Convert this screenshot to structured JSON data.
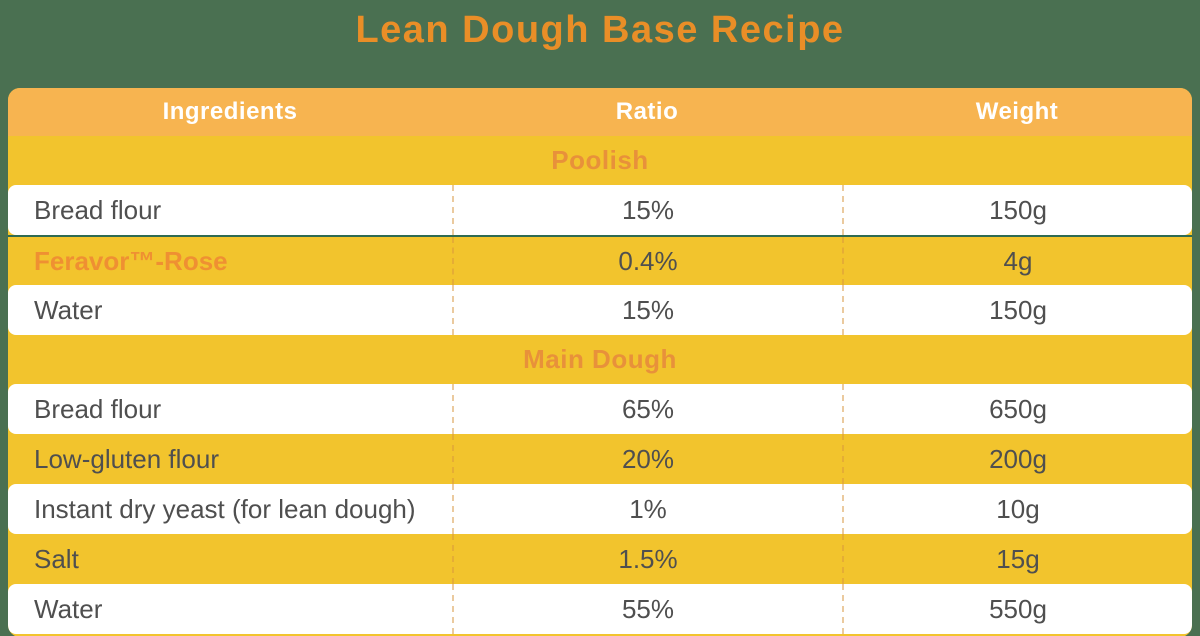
{
  "title": "Lean Dough Base Recipe",
  "colors": {
    "page_bg": "#4A7051",
    "table_bg": "#F2C42D",
    "header_bg": "#F7B450",
    "header_text": "#FFFFFF",
    "title_text": "#E98E27",
    "section_text": "#E8913A",
    "highlight_text": "#EF9032",
    "divider_green": "#2F6B52",
    "body_text": "#4F4F4F"
  },
  "table": {
    "columns": [
      {
        "key": "ingredient",
        "label": "Ingredients"
      },
      {
        "key": "ratio",
        "label": "Ratio"
      },
      {
        "key": "weight",
        "label": "Weight"
      }
    ],
    "sections": [
      {
        "label": "Poolish",
        "rows": [
          {
            "ingredient": "Bread flour",
            "ratio": "15%",
            "weight": "150g",
            "variant": "white",
            "highlight": false
          },
          {
            "ingredient": "Feravor™-Rose",
            "ratio": "0.4%",
            "weight": "4g",
            "variant": "yellow",
            "highlight": true
          },
          {
            "ingredient": "Water",
            "ratio": "15%",
            "weight": "150g",
            "variant": "white",
            "highlight": false
          }
        ]
      },
      {
        "label": "Main Dough",
        "rows": [
          {
            "ingredient": "Bread flour",
            "ratio": "65%",
            "weight": "650g",
            "variant": "white",
            "highlight": false
          },
          {
            "ingredient": "Low-gluten flour",
            "ratio": "20%",
            "weight": "200g",
            "variant": "yellow",
            "highlight": false
          },
          {
            "ingredient": "Instant dry yeast (for lean dough)",
            "ratio": "1%",
            "weight": "10g",
            "variant": "white",
            "highlight": false
          },
          {
            "ingredient": "Salt",
            "ratio": "1.5%",
            "weight": "15g",
            "variant": "yellow",
            "highlight": false
          },
          {
            "ingredient": "Water",
            "ratio": "55%",
            "weight": "550g",
            "variant": "white",
            "highlight": false
          }
        ]
      }
    ]
  }
}
